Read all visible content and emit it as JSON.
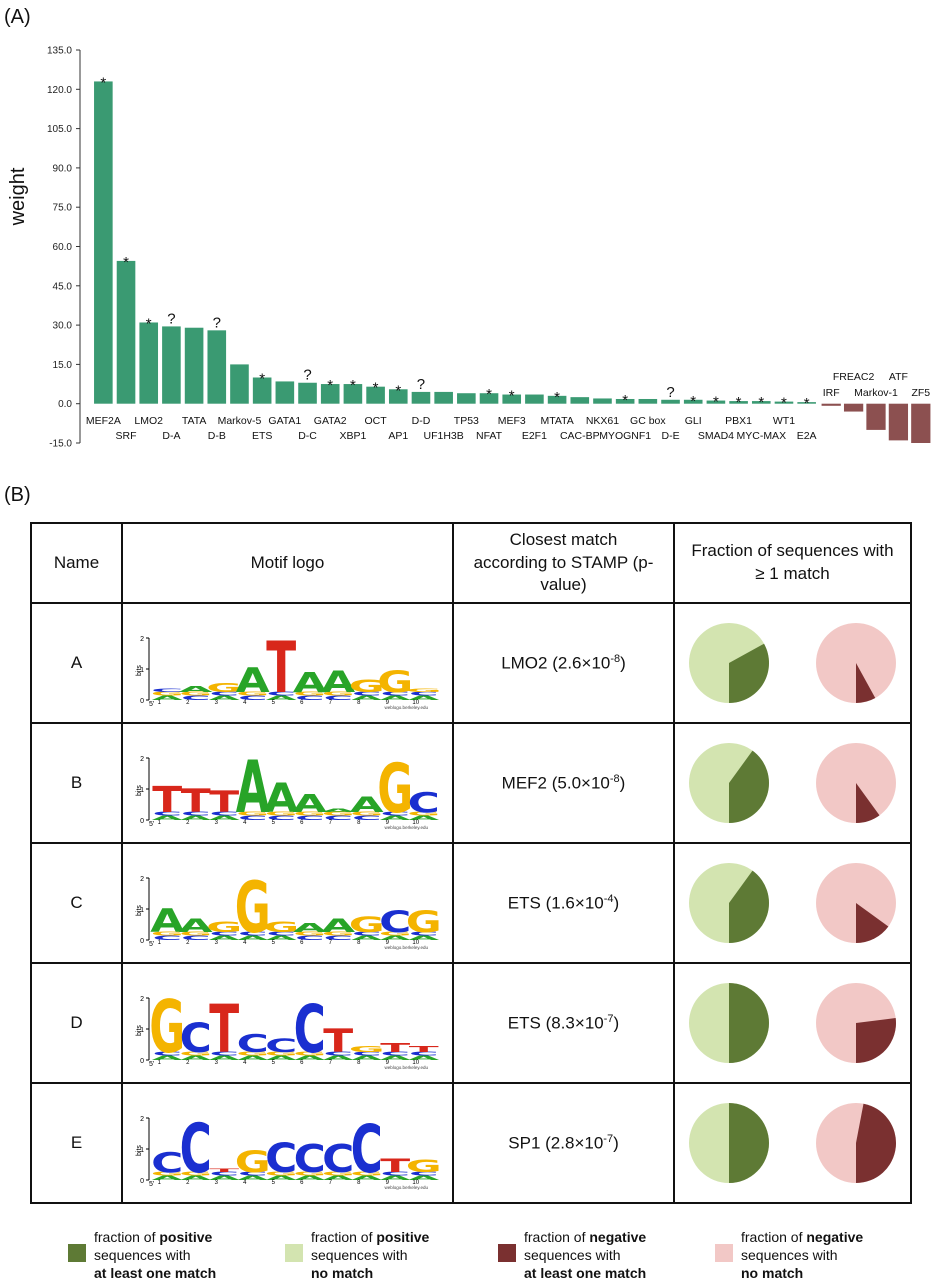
{
  "panel_a_label": "(A)",
  "panel_b_label": "(B)",
  "chart_data": {
    "type": "bar",
    "ylabel": "weight",
    "ylim": [
      -15,
      135
    ],
    "yticks": [
      "135.0",
      "120.0",
      "105.0",
      "90.0",
      "75.0",
      "60.0",
      "45.0",
      "30.0",
      "15.0",
      "0.0",
      "-15.0"
    ],
    "categories": [
      "MEF2A",
      "SRF",
      "LMO2",
      "D-A",
      "TATA",
      "D-B",
      "Markov-5",
      "ETS",
      "GATA1",
      "D-C",
      "GATA2",
      "XBP1",
      "OCT",
      "AP1",
      "D-D",
      "UF1H3B",
      "TP53",
      "NFAT",
      "MEF3",
      "E2F1",
      "MTATA",
      "CAC-BP",
      "NKX61",
      "MYOGNF1",
      "GC box",
      "D-E",
      "GLI",
      "SMAD4",
      "PBX1",
      "MYC-MAX",
      "WT1",
      "E2A",
      "IRF",
      "FREAC2",
      "Markov-1",
      "ATF",
      "ZF5"
    ],
    "values": [
      123,
      54.5,
      31,
      29.5,
      29,
      28,
      15,
      10,
      8.5,
      8,
      7.5,
      7.5,
      6.5,
      5.5,
      4.5,
      4.5,
      4,
      4,
      3.5,
      3.5,
      3,
      2.5,
      2,
      1.8,
      1.8,
      1.5,
      1.5,
      1.2,
      1,
      1,
      0.8,
      0.6,
      -0.8,
      -3,
      -10,
      -14,
      -15
    ],
    "markers": [
      "*",
      "*",
      "*",
      "?",
      "",
      "?",
      "",
      "*",
      "",
      "?",
      "*",
      "*",
      "*",
      "*",
      "?",
      "",
      "",
      "*",
      "*",
      "",
      "*",
      "",
      "",
      "*",
      "",
      "?",
      "*",
      "*",
      "*",
      "*",
      "*",
      "*",
      "",
      "",
      "",
      "",
      ""
    ],
    "positive_color": "#3a9a72",
    "negative_color": "#8c5050"
  },
  "table": {
    "headers": {
      "name": "Name",
      "logo": "Motif logo",
      "match": "Closest match according to STAMP (p-value)",
      "fraction": "Fraction of sequences with ≥ 1 match"
    },
    "logo_axis_label": "bits",
    "logo_y_ticks": [
      "2",
      "1",
      "0"
    ],
    "logo_credit": "weblogo.berkeley.edu",
    "rows": [
      {
        "name": "A",
        "match_name": "LMO2",
        "match_mant": "2.6",
        "match_exp": "-8",
        "letters": "CAGATAAGGG",
        "heights": [
          0.35,
          0.45,
          0.55,
          1.05,
          1.9,
          0.9,
          0.95,
          0.65,
          0.95,
          0.25
        ],
        "pos_fraction": 0.33,
        "neg_fraction": 0.08
      },
      {
        "name": "B",
        "match_name": "MEF2",
        "match_mant": "5.0",
        "match_exp": "-8",
        "letters": "TTTAAAAAGC",
        "heights": [
          1.1,
          1.0,
          0.95,
          1.95,
          1.2,
          0.85,
          0.25,
          0.75,
          1.85,
          0.9
        ],
        "pos_fraction": 0.4,
        "neg_fraction": 0.1
      },
      {
        "name": "C",
        "match_name": "ETS",
        "match_mant": "1.6",
        "match_exp": "-4",
        "letters": "AAGGGAAGCG",
        "heights": [
          1.0,
          0.7,
          0.6,
          1.9,
          0.6,
          0.55,
          0.7,
          0.75,
          0.95,
          0.95
        ],
        "pos_fraction": 0.4,
        "neg_fraction": 0.15
      },
      {
        "name": "D",
        "match_name": "ETS",
        "match_mant": "8.3",
        "match_exp": "-7",
        "letters": "GCTCCCTGTT",
        "heights": [
          1.95,
          1.2,
          1.8,
          0.85,
          0.7,
          1.8,
          1.0,
          0.45,
          0.55,
          0.45
        ],
        "pos_fraction": 0.5,
        "neg_fraction": 0.27
      },
      {
        "name": "E",
        "match_name": "SP1",
        "match_mant": "2.8",
        "match_exp": "-7",
        "letters": "CCTGCCCCTG",
        "heights": [
          0.9,
          1.85,
          0.3,
          0.95,
          1.2,
          1.15,
          1.15,
          1.8,
          0.7,
          0.65
        ],
        "pos_fraction": 0.5,
        "neg_fraction": 0.47
      }
    ]
  },
  "colors": {
    "pos_match": "#5e7a35",
    "pos_nomatch": "#d3e4b0",
    "neg_match": "#7a3030",
    "neg_nomatch": "#f2c8c6",
    "A": "#28a428",
    "C": "#1a2fd0",
    "G": "#f4b400",
    "T": "#d8271b"
  },
  "legend": [
    {
      "pre": "fraction of ",
      "bold1": "positive",
      "mid": "sequences with",
      "bold2": "at least one match"
    },
    {
      "pre": "fraction of ",
      "bold1": "positive",
      "mid": "sequences with",
      "bold2": "no match"
    },
    {
      "pre": "fraction of ",
      "bold1": "negative",
      "mid": "sequences with",
      "bold2": "at least one match"
    },
    {
      "pre": "fraction of ",
      "bold1": "negative",
      "mid": "sequences with",
      "bold2": "no match"
    }
  ]
}
